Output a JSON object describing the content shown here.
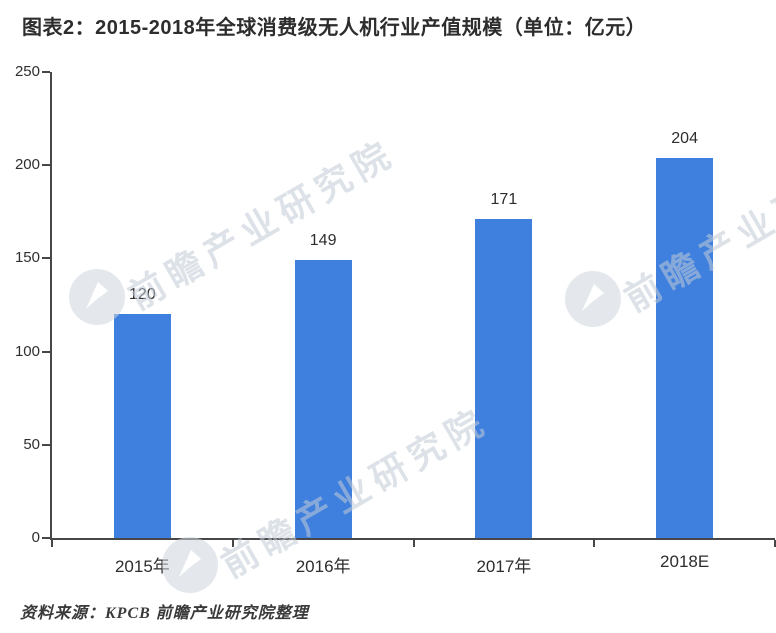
{
  "title": "图表2：2015-2018年全球消费级无人机行业产值规模（单位：亿元）",
  "source_note": "资料来源：KPCB 前瞻产业研究院整理",
  "watermark": {
    "brand_text": "前瞻产业研究院"
  },
  "colors": {
    "bar": "#3F80DE",
    "axis": "#474747",
    "text": "#2d2d2d",
    "watermark": "#c3ccd6",
    "background": "#ffffff"
  },
  "chart_data": {
    "type": "bar",
    "title": "图表2：2015-2018年全球消费级无人机行业产值规模（单位：亿元）",
    "unit": "亿元",
    "categories": [
      "2015年",
      "2016年",
      "2017年",
      "2018E"
    ],
    "values": [
      120,
      149,
      171,
      204
    ],
    "y_ticks": [
      0,
      50,
      100,
      150,
      200,
      250
    ],
    "ylim": [
      0,
      250
    ],
    "xlabel": "",
    "ylabel": "",
    "grid": false,
    "legend": "none",
    "source": "资料来源：KPCB 前瞻产业研究院整理"
  }
}
